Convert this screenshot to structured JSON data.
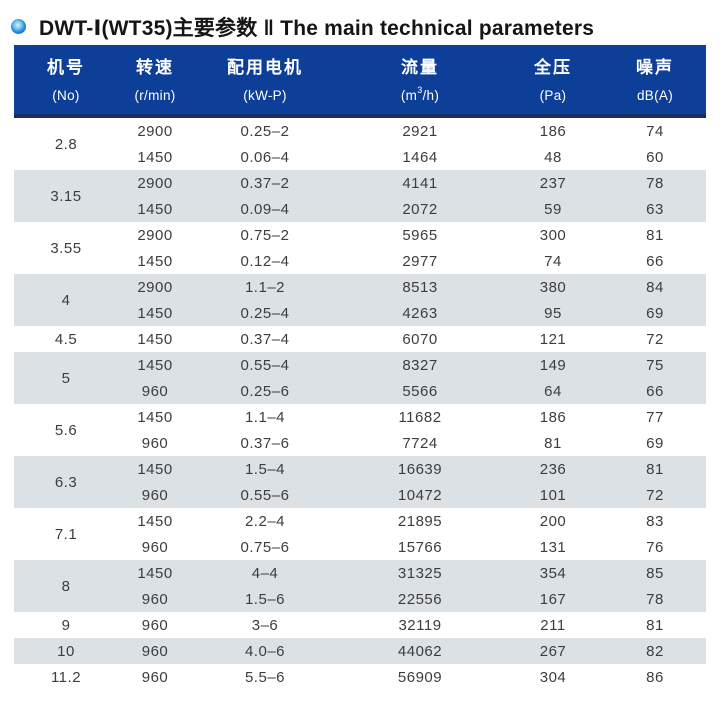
{
  "header": {
    "bullet_icon": "blue-sphere-bullet",
    "title": "DWT-Ⅰ(WT35)主要参数 ‖ The main technical parameters"
  },
  "table": {
    "columns": [
      {
        "zh": "机号",
        "unit": "(No)"
      },
      {
        "zh": "转速",
        "unit": "(r/min)"
      },
      {
        "zh": "配用电机",
        "unit": "(kW-P)"
      },
      {
        "zh": "流量",
        "unit_pre": "(m",
        "unit_sup": "3",
        "unit_post": "/h)"
      },
      {
        "zh": "全压",
        "unit": "(Pa)"
      },
      {
        "zh": "噪声",
        "unit": "dB(A)"
      }
    ],
    "groups": [
      {
        "no": "2.8",
        "rows": [
          [
            "2900",
            "0.25–2",
            "2921",
            "186",
            "74"
          ],
          [
            "1450",
            "0.06–4",
            "1464",
            "48",
            "60"
          ]
        ]
      },
      {
        "no": "3.15",
        "rows": [
          [
            "2900",
            "0.37–2",
            "4141",
            "237",
            "78"
          ],
          [
            "1450",
            "0.09–4",
            "2072",
            "59",
            "63"
          ]
        ]
      },
      {
        "no": "3.55",
        "rows": [
          [
            "2900",
            "0.75–2",
            "5965",
            "300",
            "81"
          ],
          [
            "1450",
            "0.12–4",
            "2977",
            "74",
            "66"
          ]
        ]
      },
      {
        "no": "4",
        "rows": [
          [
            "2900",
            "1.1–2",
            "8513",
            "380",
            "84"
          ],
          [
            "1450",
            "0.25–4",
            "4263",
            "95",
            "69"
          ]
        ]
      },
      {
        "no": "4.5",
        "rows": [
          [
            "1450",
            "0.37–4",
            "6070",
            "121",
            "72"
          ]
        ]
      },
      {
        "no": "5",
        "rows": [
          [
            "1450",
            "0.55–4",
            "8327",
            "149",
            "75"
          ],
          [
            "960",
            "0.25–6",
            "5566",
            "64",
            "66"
          ]
        ]
      },
      {
        "no": "5.6",
        "rows": [
          [
            "1450",
            "1.1–4",
            "11682",
            "186",
            "77"
          ],
          [
            "960",
            "0.37–6",
            "7724",
            "81",
            "69"
          ]
        ]
      },
      {
        "no": "6.3",
        "rows": [
          [
            "1450",
            "1.5–4",
            "16639",
            "236",
            "81"
          ],
          [
            "960",
            "0.55–6",
            "10472",
            "101",
            "72"
          ]
        ]
      },
      {
        "no": "7.1",
        "rows": [
          [
            "1450",
            "2.2–4",
            "21895",
            "200",
            "83"
          ],
          [
            "960",
            "0.75–6",
            "15766",
            "131",
            "76"
          ]
        ]
      },
      {
        "no": "8",
        "rows": [
          [
            "1450",
            "4–4",
            "31325",
            "354",
            "85"
          ],
          [
            "960",
            "1.5–6",
            "22556",
            "167",
            "78"
          ]
        ]
      },
      {
        "no": "9",
        "rows": [
          [
            "960",
            "3–6",
            "32119",
            "211",
            "81"
          ]
        ]
      },
      {
        "no": "10",
        "rows": [
          [
            "960",
            "4.0–6",
            "44062",
            "267",
            "82"
          ]
        ]
      },
      {
        "no": "11.2",
        "rows": [
          [
            "960",
            "5.5–6",
            "56909",
            "304",
            "86"
          ]
        ]
      }
    ]
  },
  "colors": {
    "header_bg": "#0e3f98",
    "header_border": "#1e2c5f",
    "row_stripe": "#dce1e5",
    "body_text": "#3d3d3d",
    "bullet_blue": "#1079c9"
  }
}
